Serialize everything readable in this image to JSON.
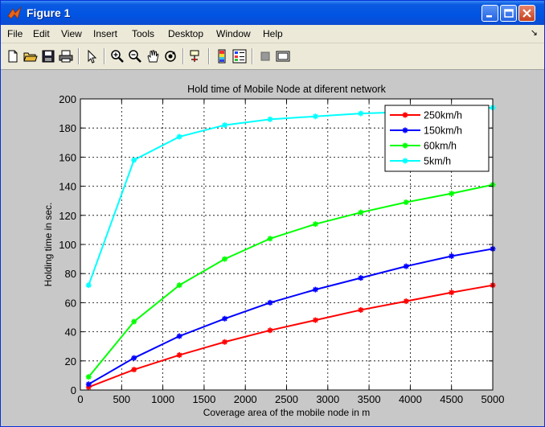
{
  "window": {
    "title": "Figure 1"
  },
  "menu": {
    "items": [
      "File",
      "Edit",
      "View",
      "Insert",
      "Tools",
      "Desktop",
      "Window",
      "Help"
    ],
    "dock_symbol": "↘"
  },
  "toolbar": {
    "icons": [
      "new-file-icon",
      "open-folder-icon",
      "save-icon",
      "print-icon",
      "pointer-icon",
      "zoom-in-icon",
      "zoom-out-icon",
      "pan-hand-icon",
      "rotate-icon",
      "data-cursor-icon",
      "colorbar-icon",
      "legend-icon",
      "hide-plot-tools-icon",
      "show-plot-tools-icon"
    ]
  },
  "chart_data": {
    "type": "line",
    "title": "Hold time of Mobile Node at diferent network",
    "xlabel": "Coverage area of the mobile node in m",
    "ylabel": "Holding time in sec.",
    "xlim": [
      0,
      5000
    ],
    "ylim": [
      0,
      200
    ],
    "xticks": [
      0,
      500,
      1000,
      1500,
      2000,
      2500,
      3000,
      3500,
      4000,
      4500,
      5000
    ],
    "yticks": [
      0,
      20,
      40,
      60,
      80,
      100,
      120,
      140,
      160,
      180,
      200
    ],
    "grid": true,
    "legend_position": "top-right",
    "x": [
      100,
      650,
      1200,
      1750,
      2300,
      2850,
      3400,
      3950,
      4500,
      5000
    ],
    "series": [
      {
        "name": "250km/h",
        "color": "#ff0000",
        "values": [
          2,
          14,
          24,
          33,
          41,
          48,
          55,
          61,
          67,
          72
        ]
      },
      {
        "name": "150km/h",
        "color": "#0000ff",
        "values": [
          4,
          22,
          37,
          49,
          60,
          69,
          77,
          85,
          92,
          97
        ]
      },
      {
        "name": "60km/h",
        "color": "#00ff00",
        "values": [
          9,
          47,
          72,
          90,
          104,
          114,
          122,
          129,
          135,
          141
        ]
      },
      {
        "name": "5km/h",
        "color": "#00ffff",
        "values": [
          72,
          158,
          174,
          182,
          186,
          188,
          190,
          191,
          192,
          194
        ]
      }
    ]
  }
}
